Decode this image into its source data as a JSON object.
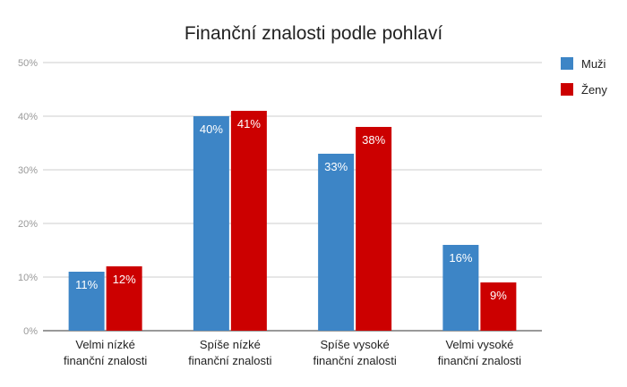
{
  "chart_data": {
    "type": "bar",
    "title": "Finanční znalosti podle pohlaví",
    "categories": [
      [
        "Velmi nízké",
        "finanční znalosti"
      ],
      [
        "Spíše nízké",
        "finanční znalosti"
      ],
      [
        "Spíše vysoké",
        "finanční znalosti"
      ],
      [
        "Velmi vysoké",
        "finanční znalosti"
      ]
    ],
    "series": [
      {
        "name": "Muži",
        "color": "#3d85c6",
        "values": [
          11,
          40,
          33,
          16
        ],
        "labels": [
          "11%",
          "40%",
          "33%",
          "16%"
        ]
      },
      {
        "name": "Ženy",
        "color": "#cc0000",
        "values": [
          12,
          41,
          38,
          9
        ],
        "labels": [
          "12%",
          "41%",
          "38%",
          "9%"
        ]
      }
    ],
    "ylim": [
      0,
      50
    ],
    "yticks": [
      0,
      10,
      20,
      30,
      40,
      50
    ],
    "ytick_labels": [
      "0%",
      "10%",
      "20%",
      "30%",
      "40%",
      "50%"
    ],
    "grid": true,
    "legend": "right"
  }
}
